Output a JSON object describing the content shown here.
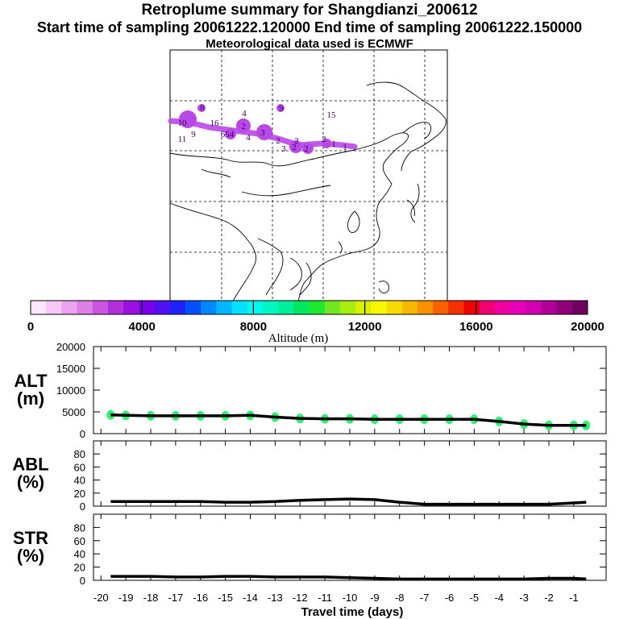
{
  "titles": {
    "main": "Retroplume summary for Shangdianzi_200612",
    "sampling": "Start time of sampling 20061222.120000     End time of sampling 20061222.150000",
    "met": "Meteorological data used is ECMWF"
  },
  "colorbar": {
    "label": "Altitude (m)",
    "ticks": [
      "0",
      "4000",
      "8000",
      "12000",
      "16000",
      "20000"
    ],
    "colors": [
      "#ffe8ff",
      "#f6c8f6",
      "#eaa4ee",
      "#dd80e6",
      "#cc55e0",
      "#b030dc",
      "#9a10e0",
      "#7a00ee",
      "#5010f0",
      "#2020f8",
      "#0050ff",
      "#0088ff",
      "#00b8ff",
      "#00e0ff",
      "#00f8ee",
      "#00f8c0",
      "#00f098",
      "#00e860",
      "#20e830",
      "#70e820",
      "#a8ec10",
      "#d8f000",
      "#f8f800",
      "#f8dc00",
      "#f8b800",
      "#f89000",
      "#f86000",
      "#f83000",
      "#f00000",
      "#f00070",
      "#f000a0",
      "#e800b8",
      "#d000b0",
      "#b00098",
      "#900078",
      "#700060"
    ],
    "tick_values": [
      0,
      4000,
      8000,
      12000,
      16000,
      20000
    ]
  },
  "map": {
    "plume_color": "#b848e8",
    "plume_label_color": "#3a0060"
  },
  "chart_data": [
    {
      "type": "line",
      "panel": "ALT",
      "ylabel": "ALT\n(m)",
      "ylabel_lines": [
        "ALT",
        "(m)"
      ],
      "ylim": [
        0,
        20000
      ],
      "yticks": [
        0,
        5000,
        10000,
        15000,
        20000
      ],
      "ytick_labels": [
        "0",
        "5000",
        "10000",
        "15000",
        "20000"
      ],
      "xlim": [
        -20,
        0
      ],
      "x": [
        -20,
        -19,
        -18,
        -17,
        -16,
        -15,
        -14,
        -13,
        -12,
        -11,
        -10,
        -9,
        -8,
        -7,
        -6,
        -5,
        -4,
        -3,
        -2,
        -1,
        -0.5
      ],
      "values": [
        4300,
        4200,
        4100,
        4100,
        4100,
        4100,
        4200,
        3800,
        3500,
        3400,
        3400,
        3300,
        3300,
        3300,
        3300,
        3300,
        2800,
        2200,
        1900,
        1900,
        1900
      ],
      "marker_color": "#30f070"
    },
    {
      "type": "line",
      "panel": "ABL",
      "ylabel_lines": [
        "ABL",
        "(%)"
      ],
      "ylim": [
        0,
        100
      ],
      "yticks": [
        0,
        20,
        40,
        60,
        80
      ],
      "ytick_labels": [
        "0",
        "20",
        "40",
        "60",
        "80"
      ],
      "xlim": [
        -20,
        0
      ],
      "x": [
        -20,
        -19,
        -18,
        -17,
        -16,
        -15,
        -14,
        -13,
        -12,
        -11,
        -10,
        -9,
        -8,
        -7,
        -6,
        -5,
        -4,
        -3,
        -2,
        -1,
        -0.5
      ],
      "values": [
        7,
        7,
        7,
        7,
        7,
        6,
        6,
        7,
        9,
        10,
        11,
        10,
        6,
        3,
        3,
        3,
        3,
        3,
        3,
        5,
        6
      ]
    },
    {
      "type": "line",
      "panel": "STR",
      "ylabel_lines": [
        "STR",
        "(%)"
      ],
      "ylim": [
        0,
        100
      ],
      "yticks": [
        0,
        20,
        40,
        60,
        80
      ],
      "ytick_labels": [
        "0",
        "20",
        "40",
        "60",
        "80"
      ],
      "xlim": [
        -20,
        0
      ],
      "x": [
        -20,
        -19,
        -18,
        -17,
        -16,
        -15,
        -14,
        -13,
        -12,
        -11,
        -10,
        -9,
        -8,
        -7,
        -6,
        -5,
        -4,
        -3,
        -2,
        -1,
        -0.5
      ],
      "values": [
        6,
        6,
        6,
        5,
        5,
        6,
        6,
        5,
        5,
        5,
        4,
        3,
        2,
        2,
        2,
        2,
        2,
        2,
        3,
        3,
        2
      ]
    }
  ],
  "xaxis": {
    "label": "Travel time (days)",
    "ticks": [
      -20,
      -19,
      -18,
      -17,
      -16,
      -15,
      -14,
      -13,
      -12,
      -11,
      -10,
      -9,
      -8,
      -7,
      -6,
      -5,
      -4,
      -3,
      -2,
      -1
    ],
    "tick_labels": [
      "-20",
      "-19",
      "-18",
      "-17",
      "-16",
      "-15",
      "-14",
      "-13",
      "-12",
      "-11",
      "-10",
      "-9",
      "-8",
      "-7",
      "-6",
      "-5",
      "-4",
      "-3",
      "-2",
      "-1"
    ]
  }
}
